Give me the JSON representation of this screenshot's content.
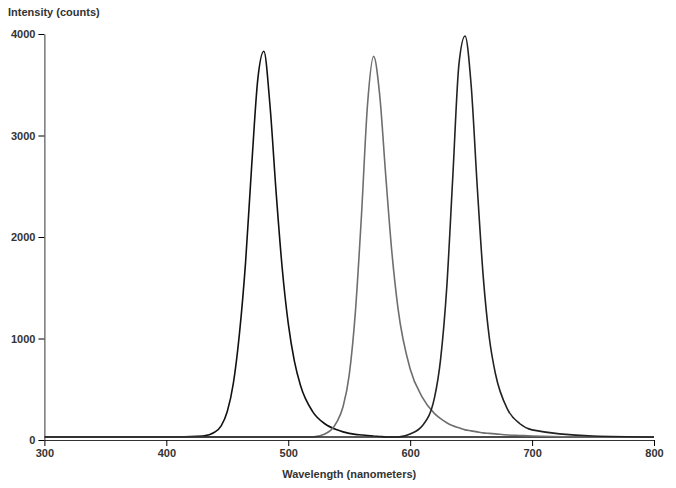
{
  "chart_data": {
    "type": "line",
    "y_label": "Intensity (counts)",
    "x_label": "Wavelength (nanometers)",
    "x": [
      300,
      350,
      400,
      430,
      440,
      445,
      450,
      455,
      460,
      465,
      470,
      475,
      480,
      485,
      490,
      495,
      500,
      505,
      510,
      520,
      530,
      540,
      545,
      550,
      555,
      560,
      565,
      570,
      575,
      580,
      585,
      590,
      600,
      610,
      620,
      625,
      630,
      635,
      640,
      645,
      650,
      655,
      660,
      665,
      670,
      680,
      690,
      700,
      750,
      800
    ],
    "series": [
      {
        "color": "#111111",
        "values": [
          30,
          30,
          30,
          40,
          80,
          140,
          280,
          560,
          1050,
          1750,
          2700,
          3550,
          3830,
          3300,
          2450,
          1700,
          1150,
          780,
          540,
          280,
          160,
          100,
          80,
          65,
          55,
          50,
          45,
          40,
          35,
          30,
          30,
          30,
          30,
          30,
          30,
          30,
          30,
          30,
          30,
          30,
          30,
          30,
          30,
          30,
          30,
          30,
          30,
          30,
          30,
          30
        ]
      },
      {
        "color": "#6e6e6e",
        "values": [
          30,
          30,
          30,
          30,
          30,
          30,
          30,
          30,
          30,
          30,
          30,
          30,
          30,
          30,
          30,
          30,
          30,
          30,
          30,
          30,
          60,
          180,
          330,
          640,
          1250,
          2200,
          3300,
          3780,
          3400,
          2600,
          1850,
          1300,
          700,
          420,
          260,
          210,
          170,
          140,
          120,
          100,
          90,
          80,
          70,
          65,
          60,
          50,
          45,
          40,
          30,
          30
        ]
      },
      {
        "color": "#222222",
        "values": [
          30,
          30,
          30,
          30,
          30,
          30,
          30,
          30,
          30,
          30,
          30,
          30,
          30,
          30,
          30,
          30,
          30,
          30,
          30,
          30,
          30,
          30,
          30,
          30,
          30,
          30,
          30,
          30,
          30,
          30,
          30,
          30,
          60,
          140,
          420,
          800,
          1500,
          2600,
          3700,
          3980,
          3500,
          2500,
          1600,
          1000,
          650,
          300,
          160,
          100,
          40,
          30
        ]
      }
    ],
    "xlim": [
      300,
      800
    ],
    "xticks": [
      300,
      400,
      500,
      600,
      700,
      800
    ],
    "ylim": [
      0,
      4000
    ],
    "yticks": [
      0,
      1000,
      2000,
      3000,
      4000
    ],
    "grid": false
  }
}
